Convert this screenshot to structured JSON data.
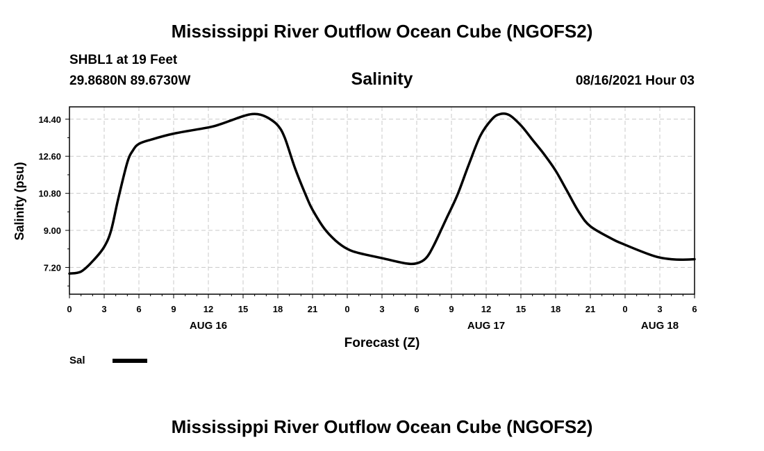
{
  "page": {
    "title_top": "Mississippi River Outflow Ocean Cube (NGOFS2)",
    "title_bottom": "Mississippi River Outflow Ocean Cube (NGOFS2)",
    "station_name": "SHBL1 at 19 Feet",
    "station_coords": "29.8680N  89.6730W",
    "variable": "Salinity",
    "run_time": "08/16/2021 Hour 03"
  },
  "chart_data": {
    "type": "line",
    "title": "Salinity",
    "xlabel": "Forecast (Z)",
    "ylabel": "Salinity (psu)",
    "xlim": [
      0,
      54
    ],
    "ylim": [
      5.9,
      15.0
    ],
    "grid": true,
    "x_ticks": [
      0,
      3,
      6,
      9,
      12,
      15,
      18,
      21,
      24,
      27,
      30,
      33,
      36,
      39,
      42,
      45,
      48,
      51,
      54
    ],
    "x_tick_labels": [
      "0",
      "3",
      "6",
      "9",
      "12",
      "15",
      "18",
      "21",
      "0",
      "3",
      "6",
      "9",
      "12",
      "15",
      "18",
      "21",
      "0",
      "3",
      "6"
    ],
    "y_ticks": [
      7.2,
      9.0,
      10.8,
      12.6,
      14.4
    ],
    "y_tick_labels": [
      "7.20",
      "9.00",
      "10.80",
      "12.60",
      "14.40"
    ],
    "date_labels": [
      {
        "label": "AUG 16",
        "x": 12
      },
      {
        "label": "AUG 17",
        "x": 36
      },
      {
        "label": "AUG 18",
        "x": 51
      }
    ],
    "legend": [
      {
        "name": "Sal",
        "color": "#000000"
      }
    ],
    "series": [
      {
        "name": "Sal",
        "color": "#000000",
        "x": [
          0,
          1,
          2,
          3,
          3.6,
          4.2,
          5,
          5.5,
          6,
          7,
          9,
          12,
          13,
          14,
          15,
          15.8,
          16.5,
          17.2,
          18,
          18.6,
          19.5,
          20.5,
          21,
          22,
          23,
          24,
          25,
          27,
          29,
          30,
          30.8,
          31.5,
          32.5,
          33.5,
          34.5,
          35.5,
          36.5,
          37.2,
          38,
          39,
          40,
          41,
          42,
          43,
          44,
          45,
          47,
          48,
          50,
          51,
          52,
          53,
          54
        ],
        "y": [
          6.9,
          7.0,
          7.5,
          8.2,
          9.0,
          10.5,
          12.3,
          12.9,
          13.2,
          13.4,
          13.7,
          14.0,
          14.15,
          14.35,
          14.55,
          14.65,
          14.62,
          14.45,
          14.1,
          13.5,
          12.0,
          10.6,
          10.0,
          9.1,
          8.5,
          8.1,
          7.9,
          7.65,
          7.4,
          7.4,
          7.65,
          8.3,
          9.5,
          10.7,
          12.2,
          13.6,
          14.4,
          14.65,
          14.6,
          14.1,
          13.4,
          12.7,
          11.9,
          10.9,
          9.9,
          9.2,
          8.55,
          8.3,
          7.85,
          7.68,
          7.6,
          7.58,
          7.6
        ]
      }
    ]
  }
}
